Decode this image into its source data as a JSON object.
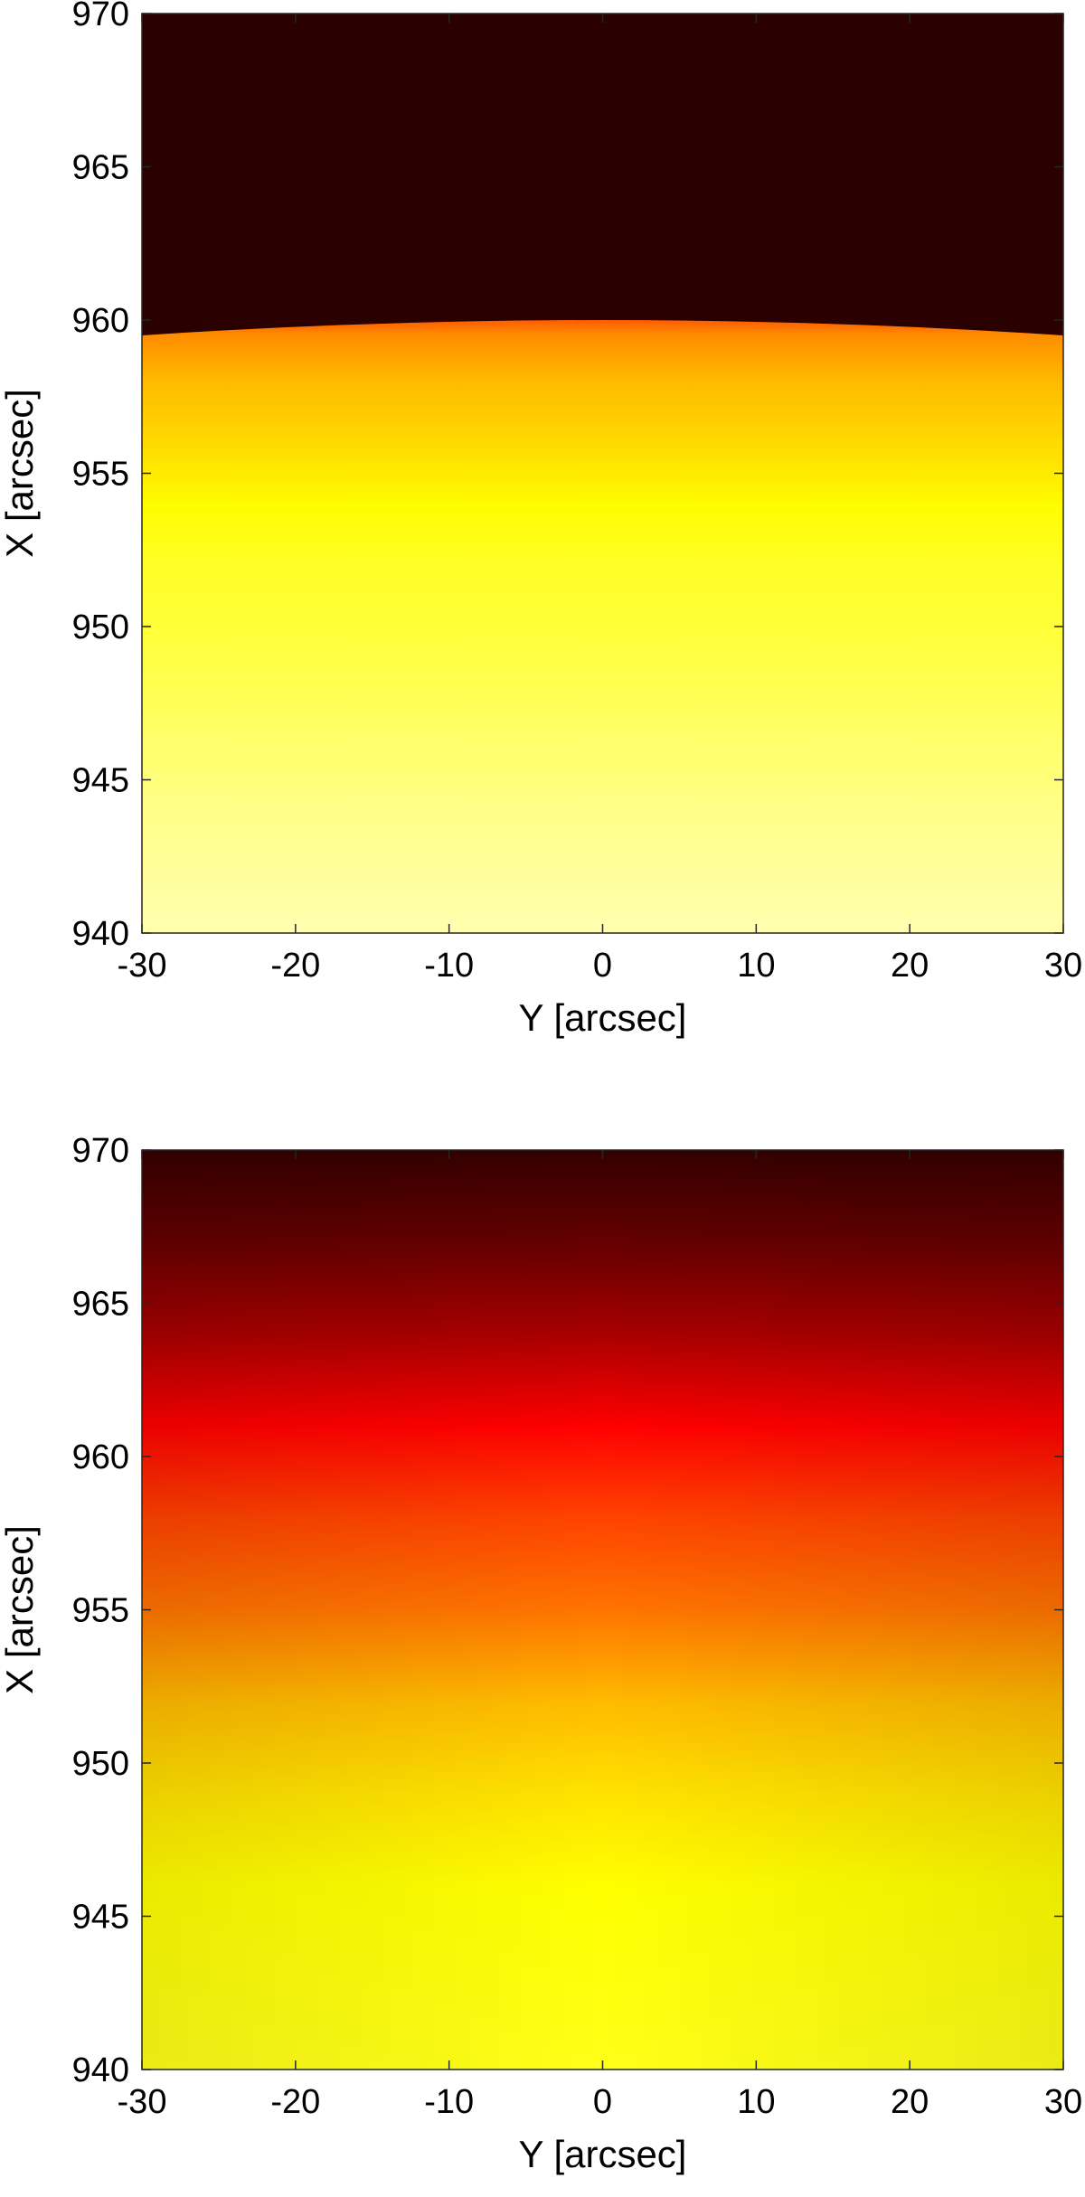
{
  "chart_data": [
    {
      "type": "heatmap",
      "title": "",
      "xlabel": "Y [arcsec]",
      "ylabel": "X [arcsec]",
      "xlim": [
        -30,
        30
      ],
      "ylim": [
        940,
        970
      ],
      "xticks": [
        -30,
        -20,
        -10,
        0,
        10,
        20,
        30
      ],
      "yticks": [
        940,
        945,
        950,
        955,
        960,
        965,
        970
      ],
      "colormap": "hot",
      "colormap_stops": [
        "#0d0000",
        "#ff0000",
        "#ff9900",
        "#ffff00",
        "#ffffc8"
      ],
      "grid": false,
      "limb": {
        "edge_x_at_center": 960.0,
        "edge_x_at_sides": 959.5,
        "outside_level": 0.03,
        "profile": [
          {
            "x": 960.0,
            "level": 0.4
          },
          {
            "x": 959.5,
            "level": 0.48
          },
          {
            "x": 958.0,
            "level": 0.58
          },
          {
            "x": 956.0,
            "level": 0.66
          },
          {
            "x": 954.0,
            "level": 0.74
          },
          {
            "x": 952.0,
            "level": 0.8
          },
          {
            "x": 950.0,
            "level": 0.82
          },
          {
            "x": 947.0,
            "level": 0.87
          },
          {
            "x": 944.0,
            "level": 0.92
          },
          {
            "x": 940.0,
            "level": 0.97
          }
        ]
      }
    },
    {
      "type": "heatmap",
      "title": "",
      "xlabel": "Y [arcsec]",
      "ylabel": "X [arcsec]",
      "xlim": [
        -30,
        30
      ],
      "ylim": [
        940,
        970
      ],
      "xticks": [
        -30,
        -20,
        -10,
        0,
        10,
        20,
        30
      ],
      "yticks": [
        940,
        945,
        950,
        955,
        960,
        965,
        970
      ],
      "colormap": "hot",
      "colormap_stops": [
        "#0d0000",
        "#ff0000",
        "#ff9900",
        "#ffff00",
        "#ffffc8"
      ],
      "grid": false,
      "profile": [
        {
          "x": 970.0,
          "level": 0.04
        },
        {
          "x": 967.0,
          "level": 0.09
        },
        {
          "x": 964.0,
          "level": 0.16
        },
        {
          "x": 961.0,
          "level": 0.25
        },
        {
          "x": 958.0,
          "level": 0.36
        },
        {
          "x": 955.0,
          "level": 0.44
        },
        {
          "x": 952.0,
          "level": 0.58
        },
        {
          "x": 949.0,
          "level": 0.68
        },
        {
          "x": 946.0,
          "level": 0.75
        },
        {
          "x": 940.0,
          "level": 0.78
        }
      ],
      "edge_darkening": 0.04
    }
  ]
}
